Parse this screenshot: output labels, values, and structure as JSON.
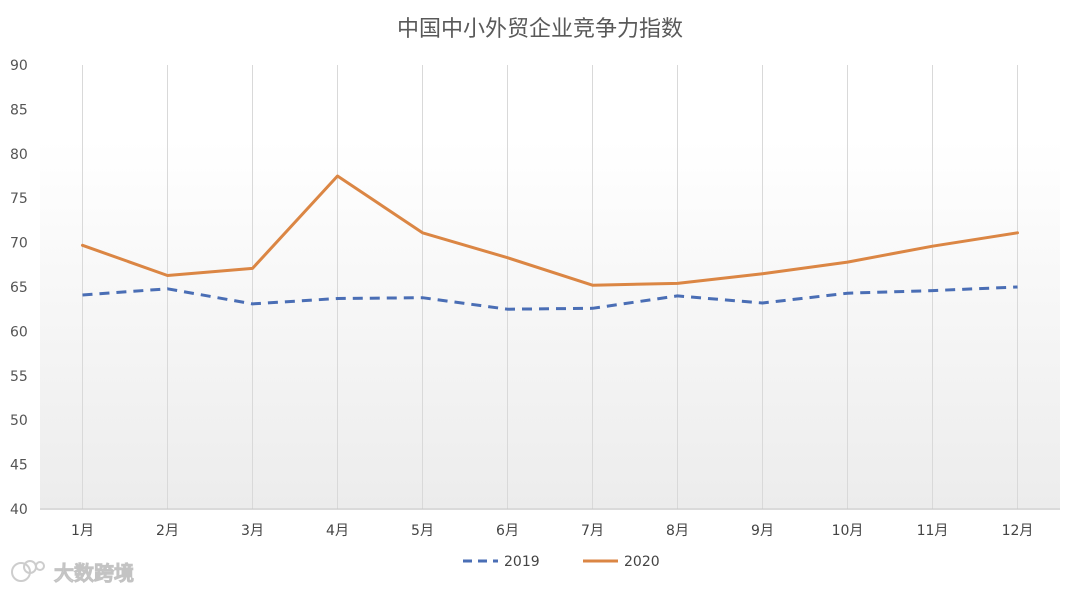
{
  "chart_data": {
    "type": "line",
    "title": "中国中小外贸企业竞争力指数",
    "xlabel": "",
    "ylabel": "",
    "ylim": [
      40,
      90
    ],
    "y_ticks": [
      40,
      45,
      50,
      55,
      60,
      65,
      70,
      75,
      80,
      85,
      90
    ],
    "categories": [
      "1月",
      "2月",
      "3月",
      "4月",
      "5月",
      "6月",
      "7月",
      "8月",
      "9月",
      "10月",
      "11月",
      "12月"
    ],
    "grid": "vertical",
    "legend_position": "bottom",
    "series": [
      {
        "name": "2019",
        "style": "dashed",
        "color": "#4a6eb5",
        "values": [
          64.1,
          64.8,
          63.1,
          63.7,
          63.8,
          62.5,
          62.6,
          64.0,
          63.2,
          64.3,
          64.6,
          65.0
        ]
      },
      {
        "name": "2020",
        "style": "solid",
        "color": "#db8644",
        "values": [
          69.7,
          66.3,
          67.1,
          77.5,
          71.1,
          68.3,
          65.2,
          65.4,
          66.5,
          67.8,
          69.6,
          71.1
        ]
      }
    ]
  },
  "watermark": {
    "text": "大数跨境",
    "icon": "logo-bubble-icon"
  }
}
